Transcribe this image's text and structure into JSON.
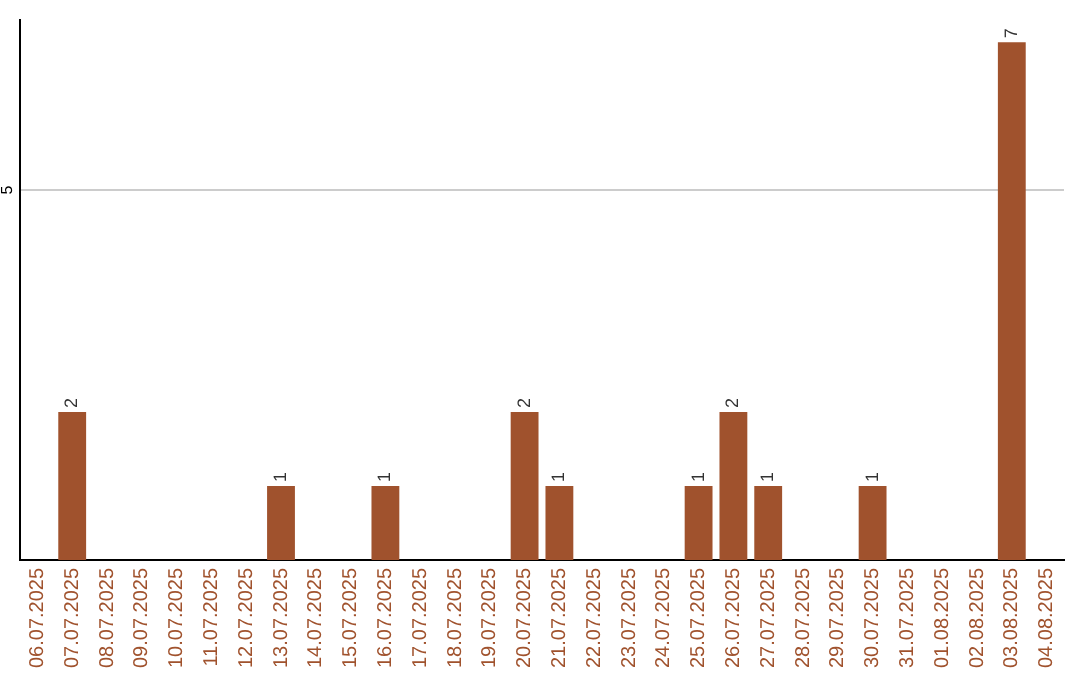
{
  "chart_data": {
    "type": "bar",
    "categories": [
      "06.07.2025",
      "07.07.2025",
      "08.07.2025",
      "09.07.2025",
      "10.07.2025",
      "11.07.2025",
      "12.07.2025",
      "13.07.2025",
      "14.07.2025",
      "15.07.2025",
      "16.07.2025",
      "17.07.2025",
      "18.07.2025",
      "19.07.2025",
      "20.07.2025",
      "21.07.2025",
      "22.07.2025",
      "23.07.2025",
      "24.07.2025",
      "25.07.2025",
      "26.07.2025",
      "27.07.2025",
      "28.07.2025",
      "29.07.2025",
      "30.07.2025",
      "31.07.2025",
      "01.08.2025",
      "02.08.2025",
      "03.08.2025",
      "04.08.2025"
    ],
    "values": [
      0,
      2,
      0,
      0,
      0,
      0,
      0,
      1,
      0,
      0,
      1,
      0,
      0,
      0,
      2,
      1,
      0,
      0,
      0,
      1,
      2,
      1,
      0,
      0,
      1,
      0,
      0,
      0,
      7,
      0
    ],
    "color": "#a0522d",
    "ylim": [
      0,
      7.3
    ],
    "yticks": [
      5
    ],
    "value_labels": [
      null,
      "2",
      null,
      null,
      null,
      null,
      null,
      "1",
      null,
      null,
      "1",
      null,
      null,
      null,
      "2",
      "1",
      null,
      null,
      null,
      "1",
      "2",
      "1",
      null,
      null,
      "1",
      null,
      null,
      null,
      "7",
      null
    ],
    "grid": "y",
    "legend": false
  }
}
